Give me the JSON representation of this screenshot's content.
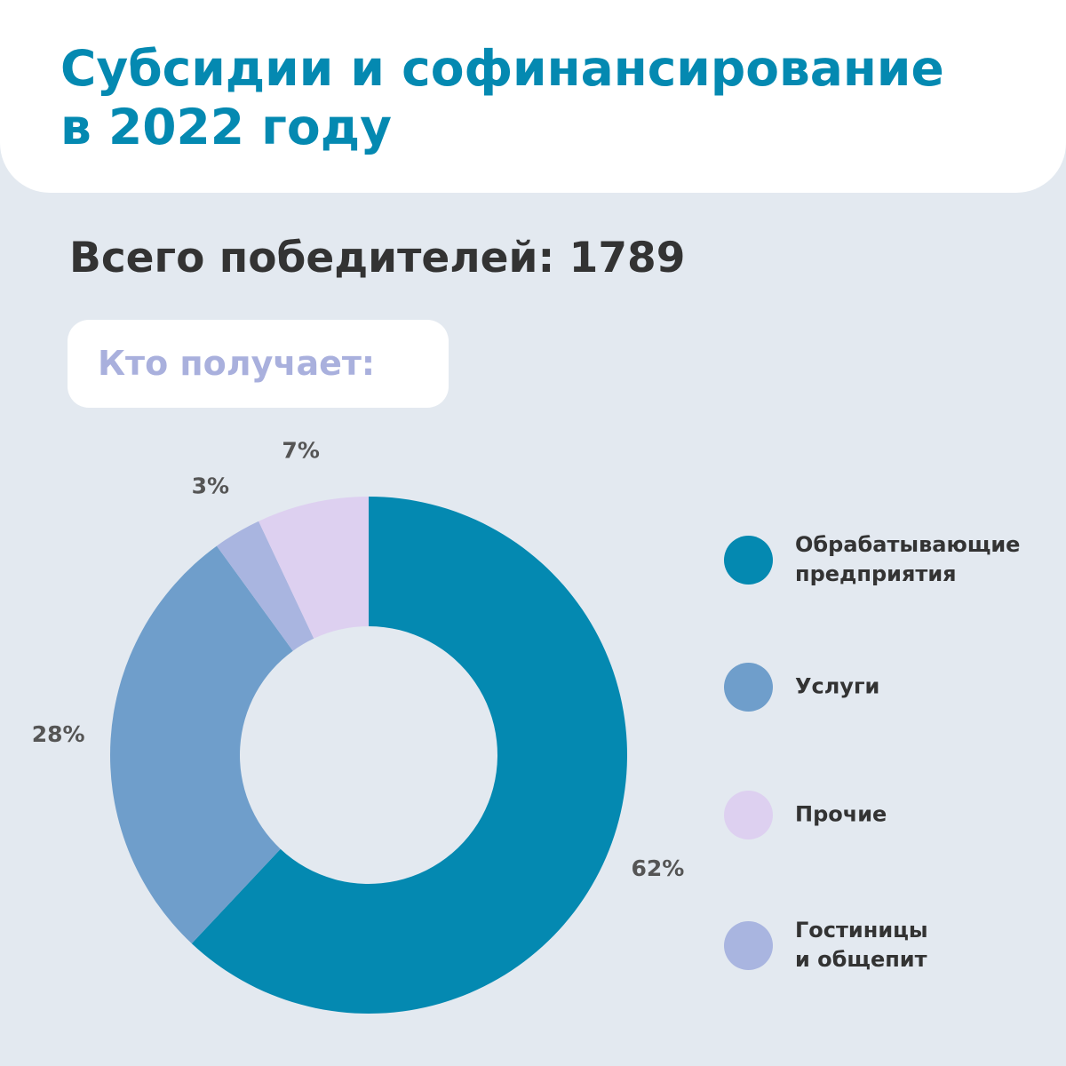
{
  "header": {
    "title_line1": "Субсидии и софинансирование",
    "title_line2": "в 2022 году"
  },
  "summary": {
    "total_winners": "Всего победителей: 1789"
  },
  "section": {
    "who_receives": "Кто получает:"
  },
  "colors": {
    "title": "#0489b1",
    "background": "#e3e9f0",
    "who_label": "#a9b0dd"
  },
  "chart_data": {
    "type": "pie",
    "style": "donut",
    "categories": [
      "Обрабатывающие\nпредприятия",
      "Услуги",
      "Прочие",
      "Гостиницы\nи общепит"
    ],
    "values": [
      62,
      28,
      7,
      3
    ],
    "labels": [
      "62%",
      "28%",
      "7%",
      "3%"
    ],
    "colors": [
      "#0489b1",
      "#6f9ecb",
      "#ddd0f0",
      "#a9b5e0"
    ],
    "draw_order": [
      0,
      1,
      3,
      2
    ],
    "start_angle": "top",
    "direction": "clockwise",
    "legend_placement": "right"
  }
}
